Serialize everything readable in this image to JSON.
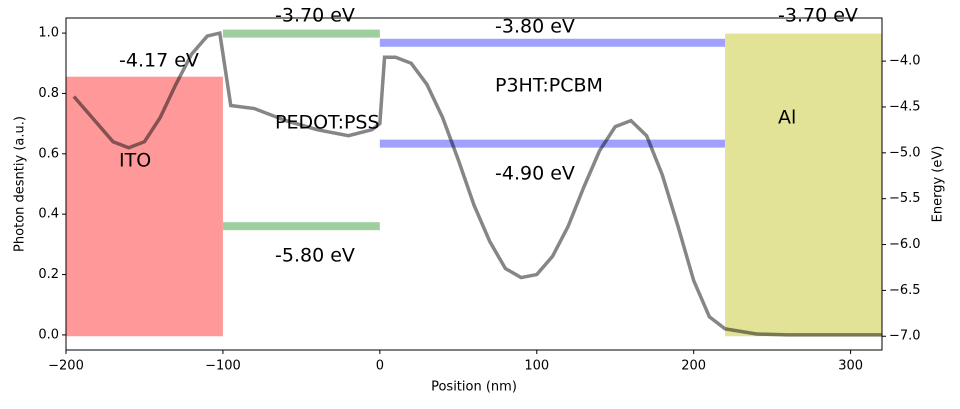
{
  "chart_data": {
    "type": "line",
    "xlabel": "Position (nm)",
    "ylabel": "Photon desntiy (a.u.)",
    "y2label": "Energy (eV)",
    "xlim": [
      -200,
      320
    ],
    "ylim": [
      -0.05,
      1.05
    ],
    "y2lim": [
      -7.15,
      -3.53
    ],
    "xticks": [
      {
        "value": -200,
        "label": "−200"
      },
      {
        "value": -100,
        "label": "−100"
      },
      0,
      100,
      200,
      300
    ],
    "yticks": [
      {
        "value": 0,
        "label": "0.0"
      },
      0.2,
      0.4,
      0.6,
      0.8,
      {
        "value": 1,
        "label": "1.0"
      }
    ],
    "y2ticks": [
      {
        "value": -4,
        "label": "−4.0"
      },
      {
        "value": -4.5,
        "label": "−4.5"
      },
      {
        "value": -5,
        "label": "−5.0"
      },
      {
        "value": -5.5,
        "label": "−5.5"
      },
      {
        "value": -6,
        "label": "−6.0"
      },
      {
        "value": -6.5,
        "label": "−6.5"
      },
      {
        "value": -7,
        "label": "−7.0"
      }
    ],
    "layers": [
      {
        "name": "ITO",
        "kind": "block",
        "x": [
          -200,
          -100
        ],
        "levels": [
          -4.17,
          -7.0
        ],
        "level_labels": [
          "-4.17 eV"
        ],
        "color": "#ff9999"
      },
      {
        "name": "PEDOT:PSS",
        "kind": "lines",
        "x": [
          -100,
          0
        ],
        "levels": [
          -3.7,
          -5.8
        ],
        "level_labels": [
          "-3.70 eV",
          "-5.80 eV"
        ],
        "color": "#9fcf9f"
      },
      {
        "name": "P3HT:PCBM",
        "kind": "lines",
        "x": [
          0,
          220
        ],
        "levels": [
          -3.8,
          -4.9
        ],
        "level_labels": [
          "-3.80 eV",
          "-4.90 eV"
        ],
        "color": "#a0a0ff"
      },
      {
        "name": "Al",
        "kind": "block",
        "x": [
          220,
          320
        ],
        "levels": [
          -3.7,
          -7.0
        ],
        "level_labels": [
          "-3.70 eV"
        ],
        "color": "#e3e397"
      }
    ],
    "series": [
      {
        "color": "#808080",
        "x": [
          -195,
          -180,
          -170,
          -160,
          -150,
          -140,
          -130,
          -120,
          -110,
          -102,
          -95,
          -80,
          -60,
          -40,
          -20,
          -5,
          0,
          3,
          10,
          20,
          30,
          40,
          50,
          60,
          70,
          80,
          90,
          100,
          110,
          120,
          130,
          140,
          150,
          160,
          170,
          180,
          190,
          200,
          210,
          220,
          240,
          260,
          320
        ],
        "values": [
          0.79,
          0.7,
          0.64,
          0.62,
          0.64,
          0.72,
          0.83,
          0.93,
          0.99,
          1.0,
          0.76,
          0.75,
          0.71,
          0.68,
          0.66,
          0.68,
          0.7,
          0.92,
          0.92,
          0.9,
          0.83,
          0.72,
          0.58,
          0.43,
          0.31,
          0.22,
          0.19,
          0.2,
          0.26,
          0.36,
          0.49,
          0.61,
          0.69,
          0.71,
          0.66,
          0.53,
          0.36,
          0.18,
          0.06,
          0.02,
          0.003,
          0,
          0
        ]
      }
    ]
  }
}
